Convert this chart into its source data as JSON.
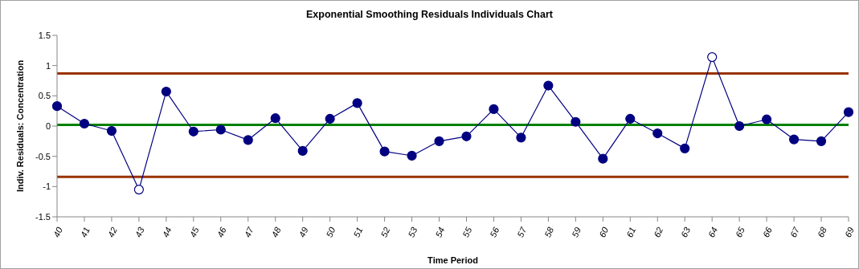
{
  "chart_data": {
    "type": "line",
    "title": "Exponential Smoothing Residuals Individuals Chart",
    "xlabel": "Time Period",
    "ylabel": "Indiv. Residuals: Concentration",
    "categories": [
      "40",
      "41",
      "42",
      "43",
      "44",
      "45",
      "46",
      "47",
      "48",
      "49",
      "50",
      "51",
      "52",
      "53",
      "54",
      "55",
      "56",
      "57",
      "58",
      "59",
      "60",
      "61",
      "62",
      "63",
      "64",
      "65",
      "66",
      "67",
      "68",
      "69"
    ],
    "series": [
      {
        "color": "#000080",
        "marker": "none",
        "values": [
          0.33,
          0.04,
          -0.08,
          -1.05,
          0.57,
          -0.09,
          -0.06,
          -0.23,
          0.13,
          -0.41,
          0.12,
          0.38,
          -0.42,
          -0.49,
          -0.25,
          -0.17,
          0.28,
          -0.19,
          0.67,
          0.07,
          -0.54,
          0.12,
          -0.12,
          -0.37,
          1.14,
          0.0,
          0.11,
          -0.22,
          -0.25,
          0.23
        ]
      },
      {
        "type": "scatter",
        "color": "#000080",
        "marker": "circle",
        "values": [
          0.33,
          0.04,
          -0.08,
          null,
          0.57,
          -0.09,
          -0.06,
          -0.23,
          0.13,
          -0.41,
          0.12,
          0.38,
          -0.42,
          -0.49,
          -0.25,
          -0.17,
          0.28,
          -0.19,
          0.67,
          0.07,
          -0.54,
          0.12,
          -0.12,
          -0.37,
          null,
          0.0,
          0.11,
          -0.22,
          -0.25,
          0.23
        ]
      },
      {
        "type": "scatter",
        "color": "#ffffff",
        "marker": "circle",
        "values": [
          null,
          null,
          null,
          -1.05,
          null,
          null,
          null,
          null,
          null,
          null,
          null,
          null,
          null,
          null,
          null,
          null,
          null,
          null,
          null,
          null,
          null,
          null,
          null,
          null,
          1.14,
          null,
          null,
          null,
          null,
          null
        ]
      }
    ],
    "ref_lines": [
      {
        "axis": "y",
        "value": 0.87,
        "color": "#993300"
      },
      {
        "axis": "y",
        "value": 0.02,
        "color": "#008000"
      },
      {
        "axis": "y",
        "value": -0.84,
        "color": "#993300"
      }
    ],
    "ylim": [
      -1.5,
      1.5
    ],
    "yticks": [
      -1.5,
      -1,
      -0.5,
      0,
      0.5,
      1,
      1.5
    ]
  }
}
